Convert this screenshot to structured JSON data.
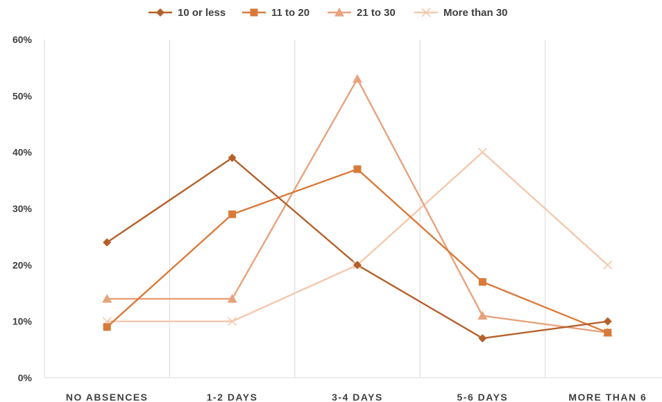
{
  "chart_data": {
    "type": "line",
    "title": "",
    "xlabel": "",
    "ylabel": "",
    "categories": [
      "NO ABSENCES",
      "1-2 DAYS",
      "3-4 DAYS",
      "5-6 DAYS",
      "MORE THAN 6"
    ],
    "yticks": [
      "0%",
      "10%",
      "20%",
      "30%",
      "40%",
      "50%",
      "60%"
    ],
    "ylim": [
      0,
      60
    ],
    "y_unit": "percent",
    "grid": "vertical",
    "legend_position": "top",
    "series": [
      {
        "name": "10 or less",
        "values": [
          24,
          39,
          20,
          7,
          10
        ],
        "color": "#b5602a",
        "marker": "diamond"
      },
      {
        "name": "11 to 20",
        "values": [
          9,
          29,
          37,
          17,
          8
        ],
        "color": "#d97a3a",
        "marker": "square"
      },
      {
        "name": "21 to 30",
        "values": [
          14,
          14,
          53,
          11,
          8
        ],
        "color": "#e8a27b",
        "marker": "triangle"
      },
      {
        "name": "More than 30",
        "values": [
          10,
          10,
          20,
          40,
          20
        ],
        "color": "#f4c8ae",
        "marker": "x"
      }
    ]
  }
}
